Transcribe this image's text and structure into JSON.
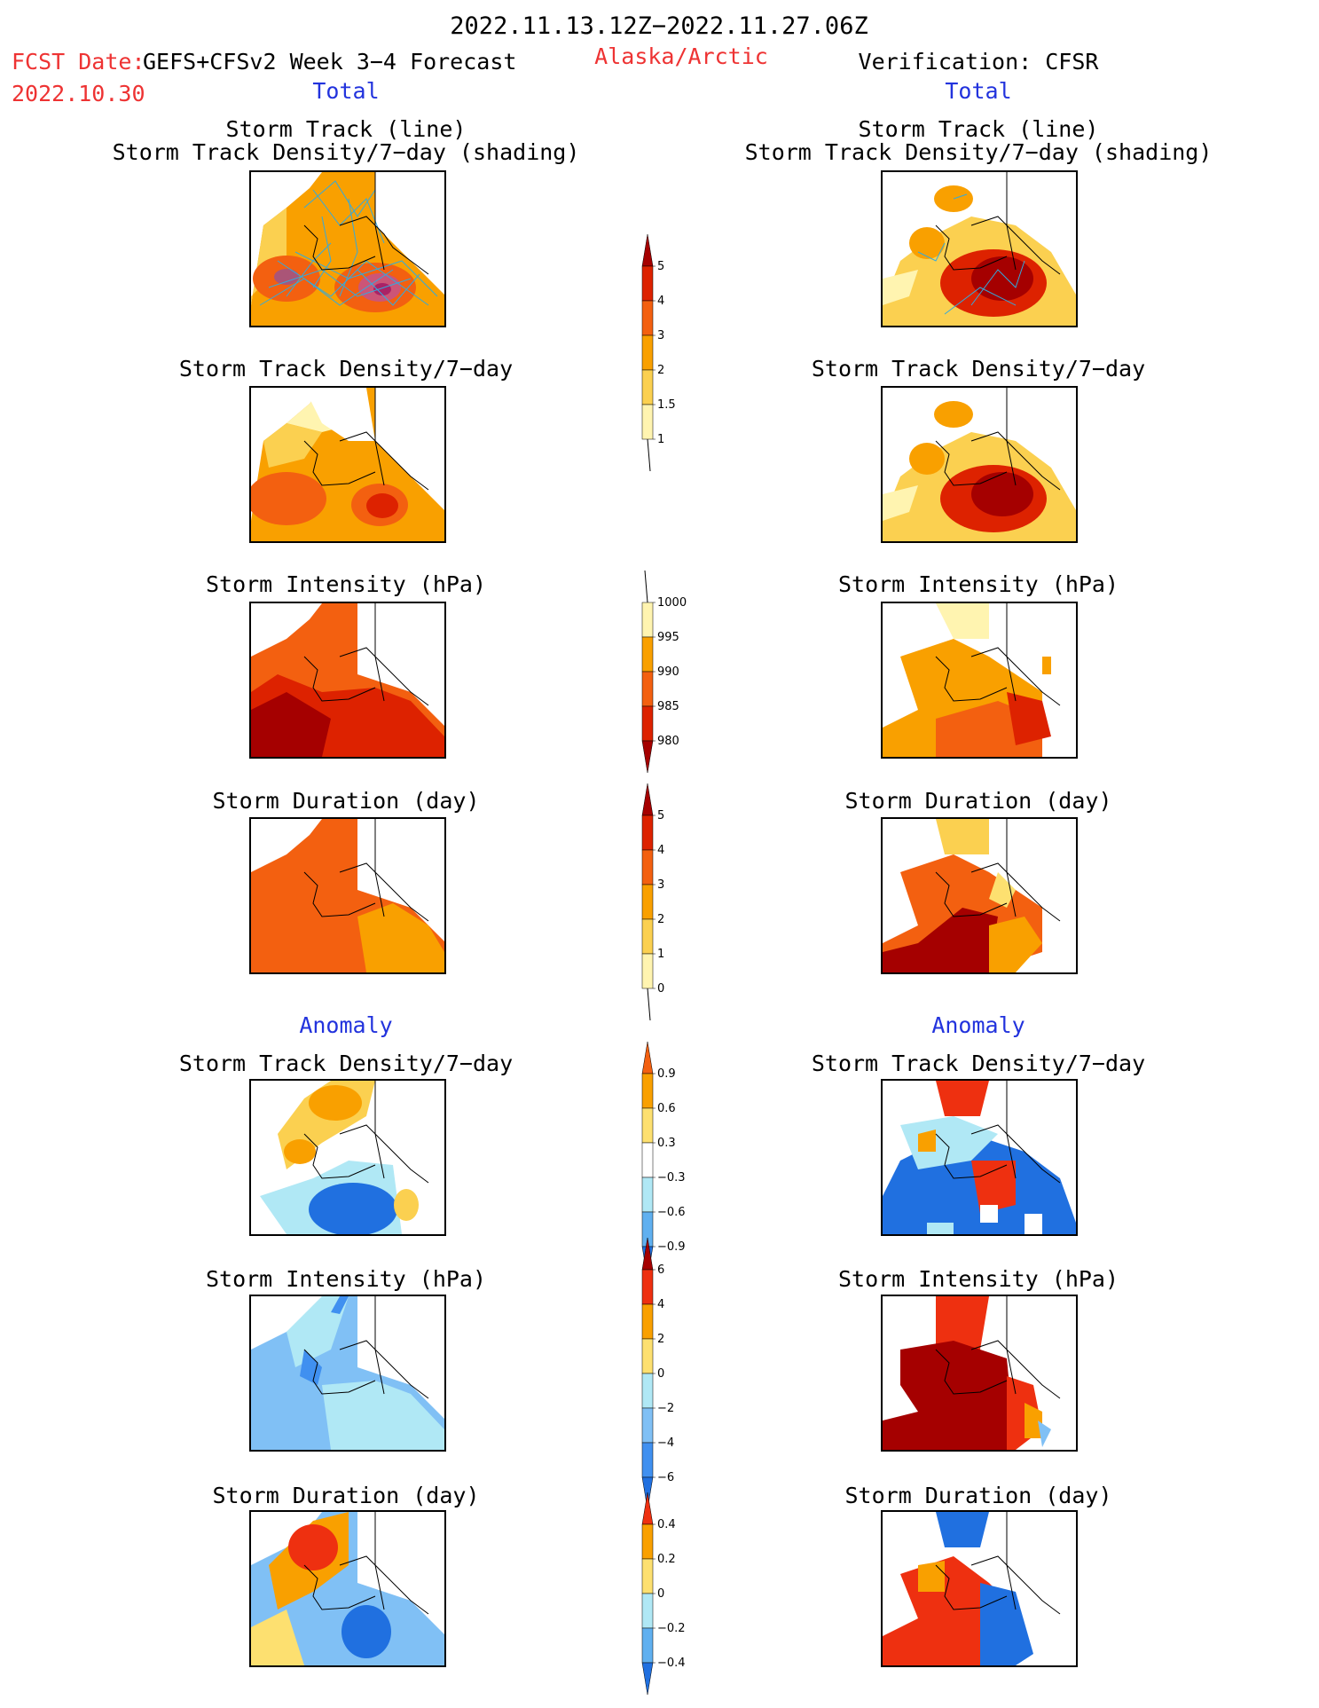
{
  "header": {
    "period": "2022.11.13.12Z−2022.11.27.06Z",
    "fcst_label": "FCST Date:",
    "model": "GEFS+CFSv2 Week 3−4 Forecast",
    "fcst_date": "2022.10.30",
    "region": "Alaska/Arctic",
    "verification": "Verification: CFSR"
  },
  "columns": [
    {
      "section_total": "Total",
      "section_anomaly": "Anomaly"
    },
    {
      "section_total": "Total",
      "section_anomaly": "Anomaly"
    }
  ],
  "panel_titles": {
    "track_line": "Storm Track (line)",
    "track_shading": "Storm Track Density/7−day (shading)",
    "track_density": "Storm Track Density/7−day",
    "intensity": "Storm Intensity (hPa)",
    "duration": "Storm Duration (day)"
  },
  "colorbars": [
    {
      "id": "density_total",
      "labels": [
        "5",
        "4",
        "3",
        "2",
        "1.5",
        "1"
      ],
      "colors": [
        "#a50000",
        "#dd2200",
        "#f36010",
        "#f9a000",
        "#fbd050",
        "#fff4b0"
      ]
    },
    {
      "id": "intensity_total",
      "labels": [
        "1000",
        "995",
        "990",
        "985",
        "980"
      ],
      "colors": [
        "#fff4b0",
        "#f9a000",
        "#f36010",
        "#dd2200",
        "#a50000"
      ]
    },
    {
      "id": "duration_total",
      "labels": [
        "5",
        "4",
        "3",
        "2",
        "1",
        "0"
      ],
      "colors": [
        "#a50000",
        "#dd2200",
        "#f36010",
        "#f9a000",
        "#fbd050",
        "#fff4b0"
      ]
    },
    {
      "id": "density_anom",
      "labels": [
        "0.9",
        "0.6",
        "0.3",
        "−0.3",
        "−0.6",
        "−0.9"
      ],
      "colors": [
        "#f36010",
        "#f9a000",
        "#fde070",
        "#ffffff",
        "#b0e8f5",
        "#60b0f0",
        "#2070e0"
      ]
    },
    {
      "id": "intensity_anom",
      "labels": [
        "6",
        "4",
        "2",
        "0",
        "−2",
        "−4",
        "−6"
      ],
      "colors": [
        "#a50000",
        "#ee3010",
        "#f9a000",
        "#fde070",
        "#b0e8f5",
        "#80c0f5",
        "#4090f0",
        "#2070e0"
      ]
    },
    {
      "id": "duration_anom",
      "labels": [
        "0.4",
        "0.2",
        "0",
        "−0.2",
        "−0.4"
      ],
      "colors": [
        "#ee3010",
        "#f9a000",
        "#fde070",
        "#b0e8f5",
        "#60b0f0",
        "#2070e0"
      ]
    }
  ]
}
